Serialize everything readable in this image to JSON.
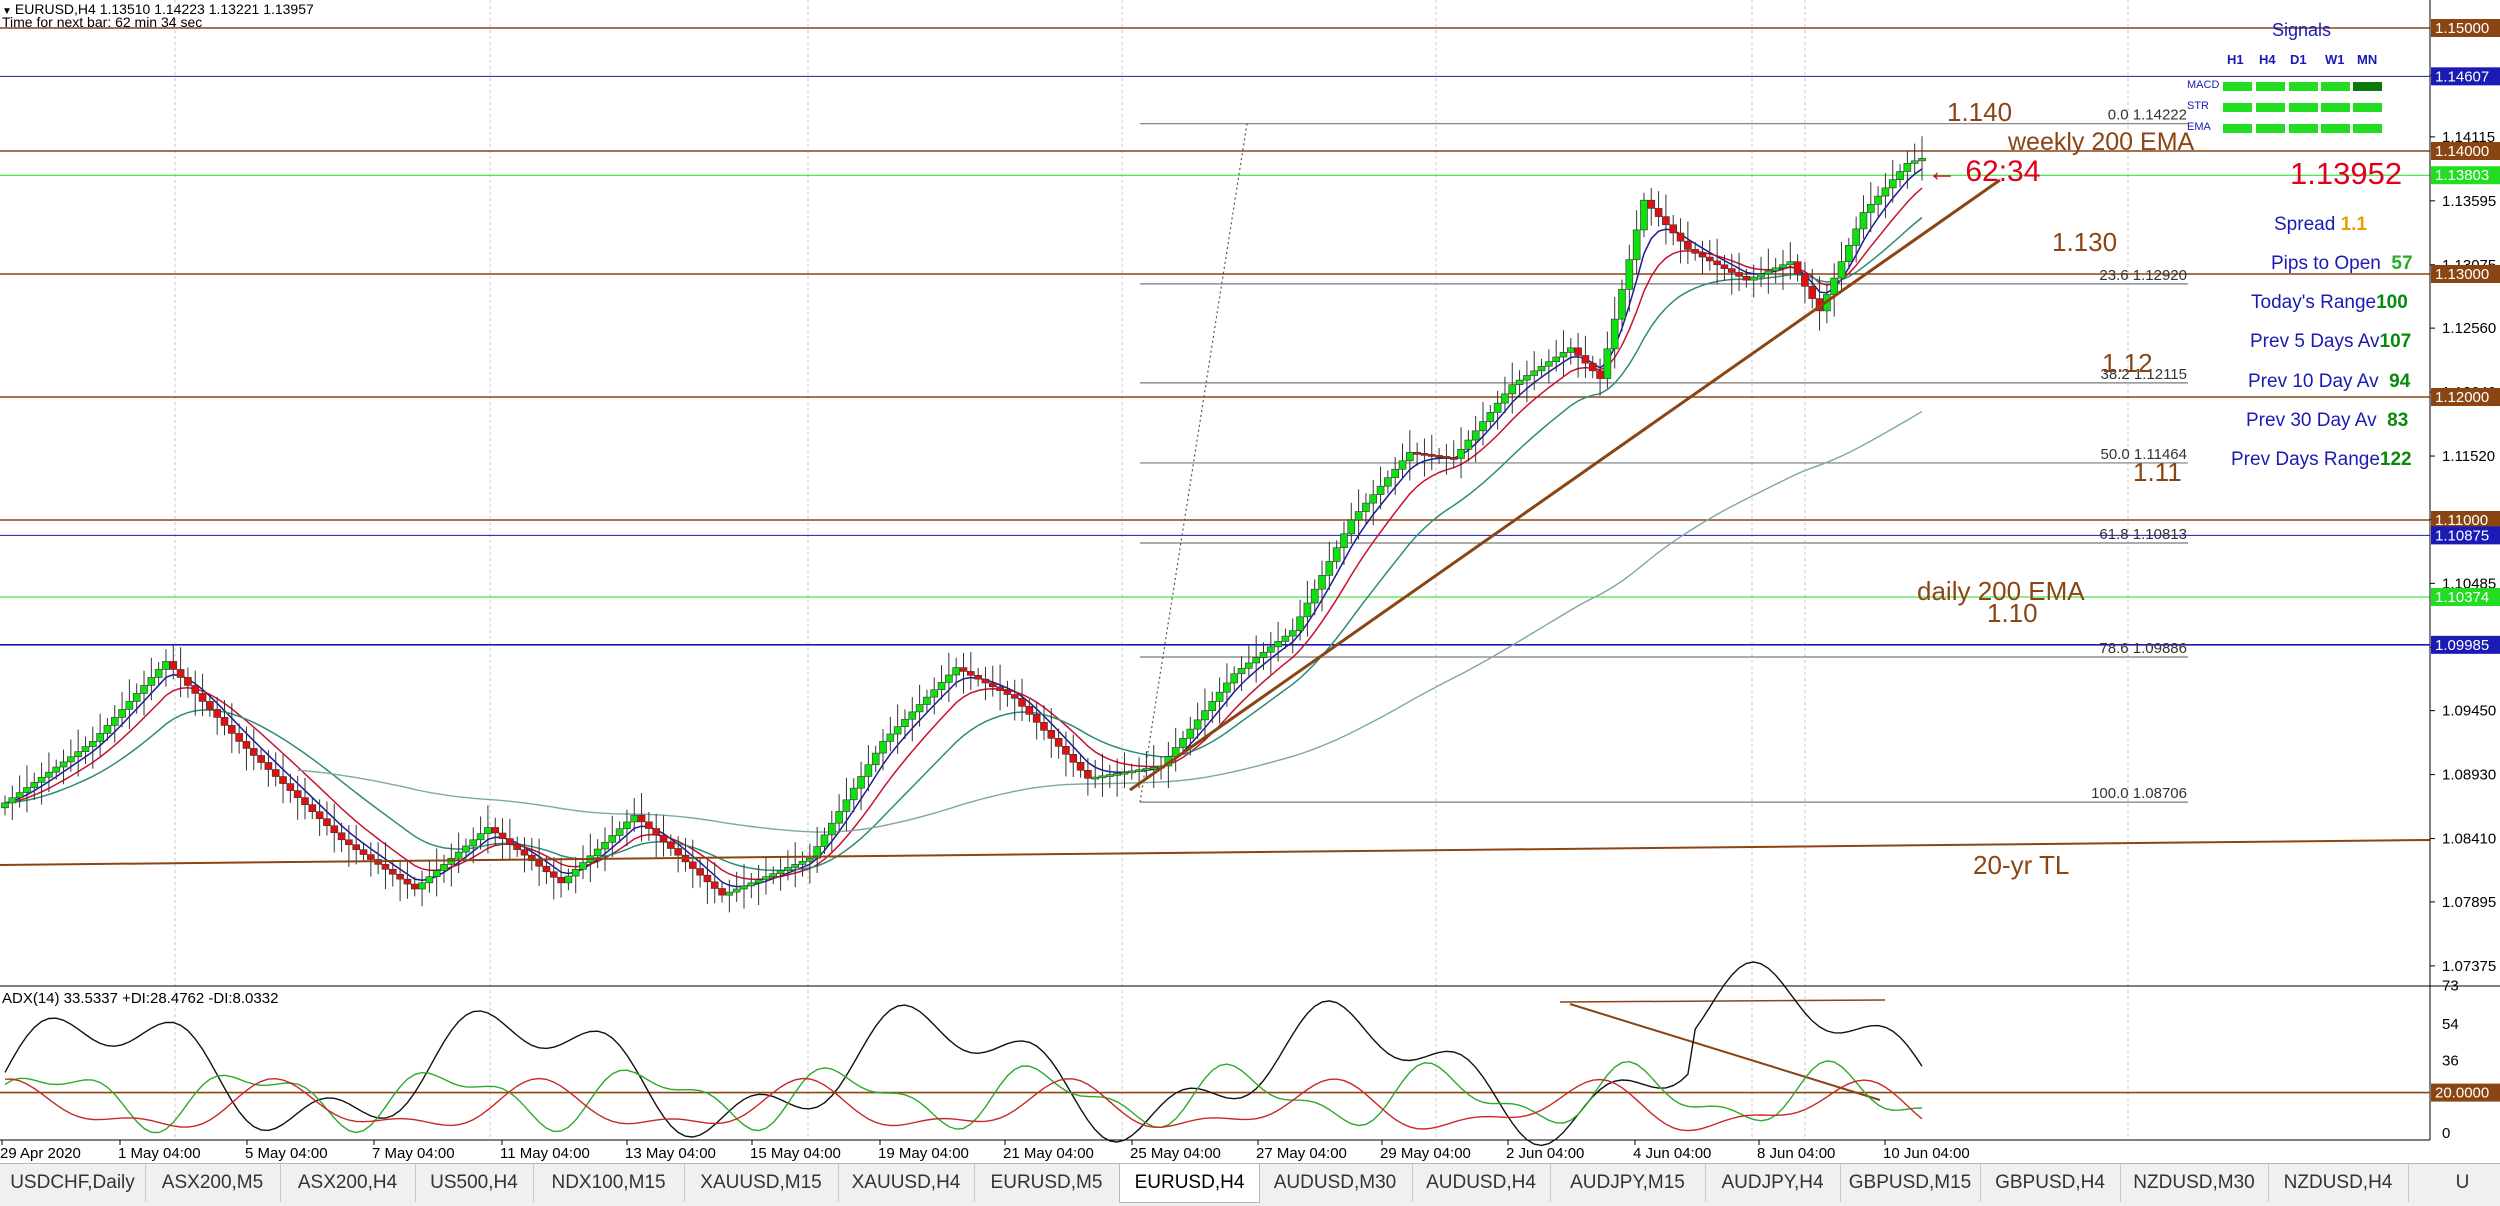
{
  "header": {
    "symbol_line": "EURUSD,H4  1.13510 1.14223 1.13221 1.13957",
    "timer_line": "Time for next bar: 62 min 34 sec"
  },
  "price_axis": {
    "ticks": [
      "1.14615",
      "1.14115",
      "1.13595",
      "1.13075",
      "1.12560",
      "1.12040",
      "1.11520",
      "1.11005",
      "1.10485",
      "1.09965",
      "1.09450",
      "1.08930",
      "1.08410",
      "1.07895",
      "1.07375"
    ],
    "markers": [
      {
        "label": "1.15000",
        "color": "#8b4513"
      },
      {
        "label": "1.14607",
        "color": "#1a1ab5"
      },
      {
        "label": "1.14000",
        "color": "#8b4513"
      },
      {
        "label": "1.13803",
        "color": "#22dd22"
      },
      {
        "label": "1.13000",
        "color": "#8b4513"
      },
      {
        "label": "1.12000",
        "color": "#8b4513"
      },
      {
        "label": "1.11000",
        "color": "#8b4513"
      },
      {
        "label": "1.10875",
        "color": "#1a1ab5"
      },
      {
        "label": "1.10374",
        "color": "#22dd22"
      },
      {
        "label": "1.09985",
        "color": "#1a1ab5"
      }
    ]
  },
  "time_axis": [
    "29 Apr 2020",
    "1 May 04:00",
    "5 May 04:00",
    "7 May 04:00",
    "11 May 04:00",
    "13 May 04:00",
    "15 May 04:00",
    "19 May 04:00",
    "21 May 04:00",
    "25 May 04:00",
    "27 May 04:00",
    "29 May 04:00",
    "2 Jun 04:00",
    "4 Jun 04:00",
    "8 Jun 04:00",
    "10 Jun 04:00"
  ],
  "fibonacci": [
    {
      "level": "0.0",
      "price": "1.14222"
    },
    {
      "level": "23.6",
      "price": "1.12920"
    },
    {
      "level": "38.2",
      "price": "1.12115"
    },
    {
      "level": "50.0",
      "price": "1.11464"
    },
    {
      "level": "61.8",
      "price": "1.10813"
    },
    {
      "level": "78.6",
      "price": "1.09886"
    },
    {
      "level": "100.0",
      "price": "1.08706"
    }
  ],
  "annotations": {
    "level_1140": "1.140",
    "weekly_ema": "weekly 200 EMA",
    "timer_arrow": "← 62:34",
    "level_1130": "1.130",
    "level_112": "1.12",
    "level_111": "1.11",
    "daily_ema": "daily 200 EMA",
    "level_110": "1.10",
    "trendline_20yr": "20-yr TL"
  },
  "signals": {
    "title": "Signals",
    "timeframes": [
      "H1",
      "H4",
      "D1",
      "W1",
      "MN"
    ],
    "rows": [
      "MACD",
      "STR",
      "EMA"
    ]
  },
  "info_panel": {
    "bid": "1.13952",
    "spread_label": "Spread",
    "spread_value": "1.1",
    "pips_label": "Pips to Open",
    "pips_value": "57",
    "today_label": "Today's Range",
    "today_value": "100",
    "prev5_label": "Prev 5 Days Av",
    "prev5_value": "107",
    "prev10_label": "Prev 10 Day Av",
    "prev10_value": "94",
    "prev30_label": "Prev 30 Day Av",
    "prev30_value": "83",
    "prevdays_label": "Prev Days Range",
    "prevdays_value": "122"
  },
  "adx": {
    "title": "ADX(14) 33.5337 +DI:28.4762 -DI:8.0332",
    "ticks": [
      "73",
      "54",
      "36",
      "0"
    ],
    "marker": "20.0000"
  },
  "tabs": [
    {
      "label": "USDCHF,Daily",
      "active": false
    },
    {
      "label": "ASX200,M5",
      "active": false
    },
    {
      "label": "ASX200,H4",
      "active": false
    },
    {
      "label": "US500,H4",
      "active": false
    },
    {
      "label": "NDX100,M15",
      "active": false
    },
    {
      "label": "XAUUSD,M15",
      "active": false
    },
    {
      "label": "XAUUSD,H4",
      "active": false
    },
    {
      "label": "EURUSD,M5",
      "active": false
    },
    {
      "label": "EURUSD,H4",
      "active": true
    },
    {
      "label": "AUDUSD,M30",
      "active": false
    },
    {
      "label": "AUDUSD,H4",
      "active": false
    },
    {
      "label": "AUDJPY,M15",
      "active": false
    },
    {
      "label": "AUDJPY,H4",
      "active": false
    },
    {
      "label": "GBPUSD,M15",
      "active": false
    },
    {
      "label": "GBPUSD,H4",
      "active": false
    },
    {
      "label": "NZDUSD,M30",
      "active": false
    },
    {
      "label": "NZDUSD,H4",
      "active": false
    },
    {
      "label": "U",
      "active": false
    }
  ]
}
